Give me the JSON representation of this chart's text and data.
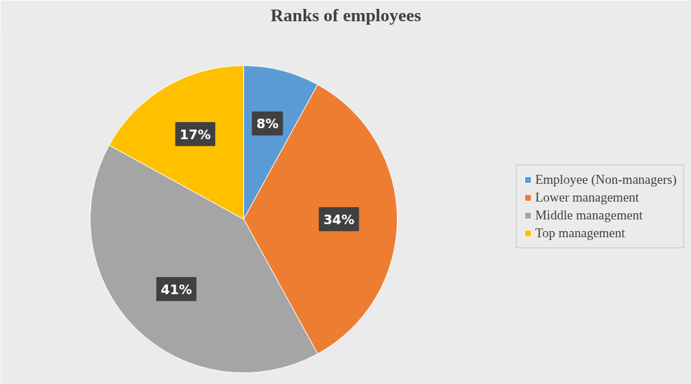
{
  "chart_data": {
    "type": "pie",
    "title": "Ranks of employees",
    "categories": [
      "Employee (Non-managers)",
      "Lower management",
      "Middle management",
      "Top management"
    ],
    "values": [
      8,
      34,
      41,
      17
    ],
    "colors": [
      "#5b9bd5",
      "#ed7d31",
      "#a5a5a5",
      "#ffc000"
    ],
    "value_labels": [
      "8%",
      "34%",
      "41%",
      "17%"
    ],
    "legend": "right"
  }
}
